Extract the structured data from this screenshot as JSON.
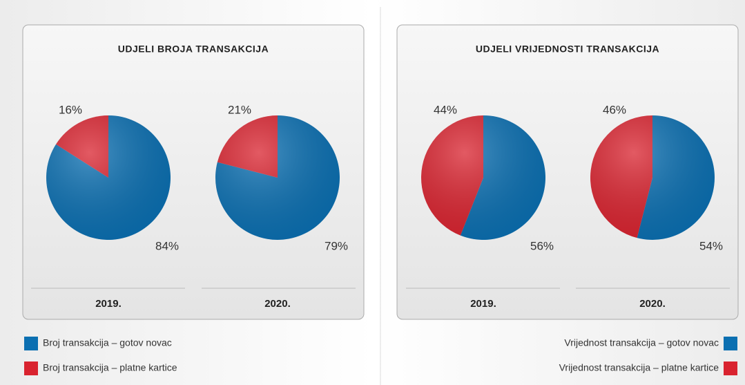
{
  "panels": [
    {
      "title": "UDJELI BROJA TRANSAKCIJA",
      "legend": [
        "Broj transakcija – gotov novac",
        "Broj transakcija – platne kartice"
      ]
    },
    {
      "title": "UDJELI VRIJEDNOSTI TRANSAKCIJA",
      "legend": [
        "Vrijednost transakcija – gotov novac",
        "Vrijednost transakcija – platne kartice"
      ]
    }
  ],
  "chart_data": [
    {
      "type": "pie",
      "title": "2019.",
      "values": [
        84,
        16
      ],
      "value_labels": [
        "84%",
        "16%"
      ],
      "colors": [
        "#0b6fb1",
        "#d9232f"
      ]
    },
    {
      "type": "pie",
      "title": "2020.",
      "values": [
        79,
        21
      ],
      "value_labels": [
        "79%",
        "21%"
      ],
      "colors": [
        "#0b6fb1",
        "#d9232f"
      ]
    },
    {
      "type": "pie",
      "title": "2019.",
      "values": [
        56,
        44
      ],
      "value_labels": [
        "56%",
        "44%"
      ],
      "colors": [
        "#0b6fb1",
        "#d9232f"
      ]
    },
    {
      "type": "pie",
      "title": "2020.",
      "values": [
        54,
        46
      ],
      "value_labels": [
        "54%",
        "46%"
      ],
      "colors": [
        "#0b6fb1",
        "#d9232f"
      ]
    }
  ]
}
